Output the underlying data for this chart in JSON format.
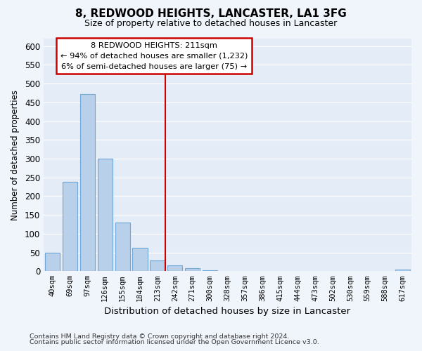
{
  "title": "8, REDWOOD HEIGHTS, LANCASTER, LA1 3FG",
  "subtitle": "Size of property relative to detached houses in Lancaster",
  "xlabel": "Distribution of detached houses by size in Lancaster",
  "ylabel": "Number of detached properties",
  "bar_labels": [
    "40sqm",
    "69sqm",
    "97sqm",
    "126sqm",
    "155sqm",
    "184sqm",
    "213sqm",
    "242sqm",
    "271sqm",
    "300sqm",
    "328sqm",
    "357sqm",
    "386sqm",
    "415sqm",
    "444sqm",
    "473sqm",
    "502sqm",
    "530sqm",
    "559sqm",
    "588sqm",
    "617sqm"
  ],
  "bar_values": [
    50,
    238,
    472,
    300,
    130,
    62,
    28,
    15,
    8,
    3,
    1,
    1,
    0,
    0,
    0,
    0,
    0,
    0,
    0,
    0,
    5
  ],
  "bar_color": "#b8d0ea",
  "bar_edge_color": "#6fa8d6",
  "highlight_index": 6,
  "vline_color": "#cc0000",
  "ylim": [
    0,
    620
  ],
  "yticks": [
    0,
    50,
    100,
    150,
    200,
    250,
    300,
    350,
    400,
    450,
    500,
    550,
    600
  ],
  "box_text_line1": "8 REDWOOD HEIGHTS: 211sqm",
  "box_text_line2": "← 94% of detached houses are smaller (1,232)",
  "box_text_line3": "6% of semi-detached houses are larger (75) →",
  "footnote1": "Contains HM Land Registry data © Crown copyright and database right 2024.",
  "footnote2": "Contains public sector information licensed under the Open Government Licence v3.0.",
  "bg_color": "#f0f4fb",
  "plot_bg_color": "#e4ecf7",
  "grid_color": "#ffffff",
  "title_fontsize": 11,
  "subtitle_fontsize": 9
}
